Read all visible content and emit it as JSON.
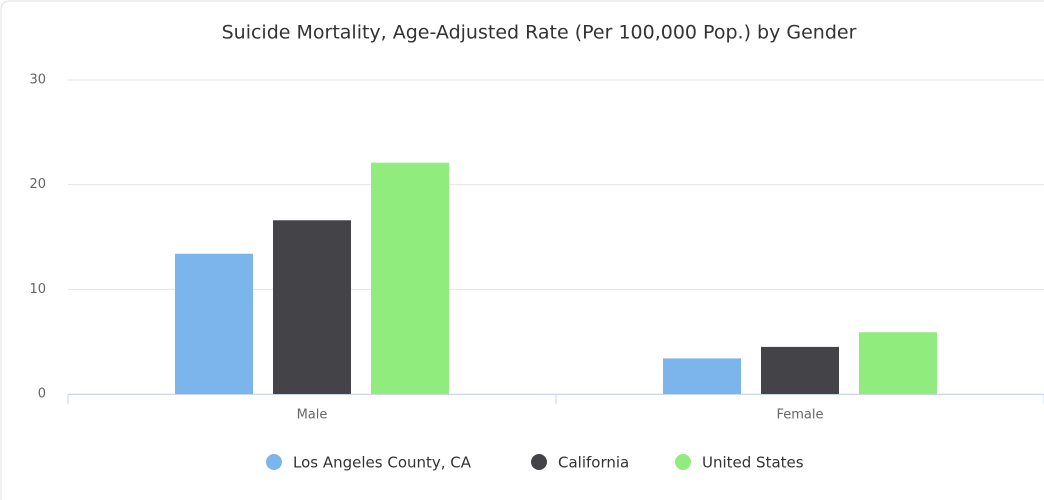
{
  "chart_data": {
    "type": "bar",
    "title": "Suicide Mortality, Age-Adjusted Rate (Per 100,000 Pop.) by Gender",
    "categories": [
      "Male",
      "Female"
    ],
    "series": [
      {
        "name": "Los Angeles County, CA",
        "color": "#7cb5ec",
        "values": [
          13.4,
          3.4
        ]
      },
      {
        "name": "California",
        "color": "#434348",
        "values": [
          16.6,
          4.5
        ]
      },
      {
        "name": "United States",
        "color": "#90ed7d",
        "values": [
          22.1,
          5.9
        ]
      }
    ],
    "ylim": [
      0,
      30
    ],
    "yticks": [
      0,
      10,
      20,
      30
    ],
    "grid": true
  }
}
